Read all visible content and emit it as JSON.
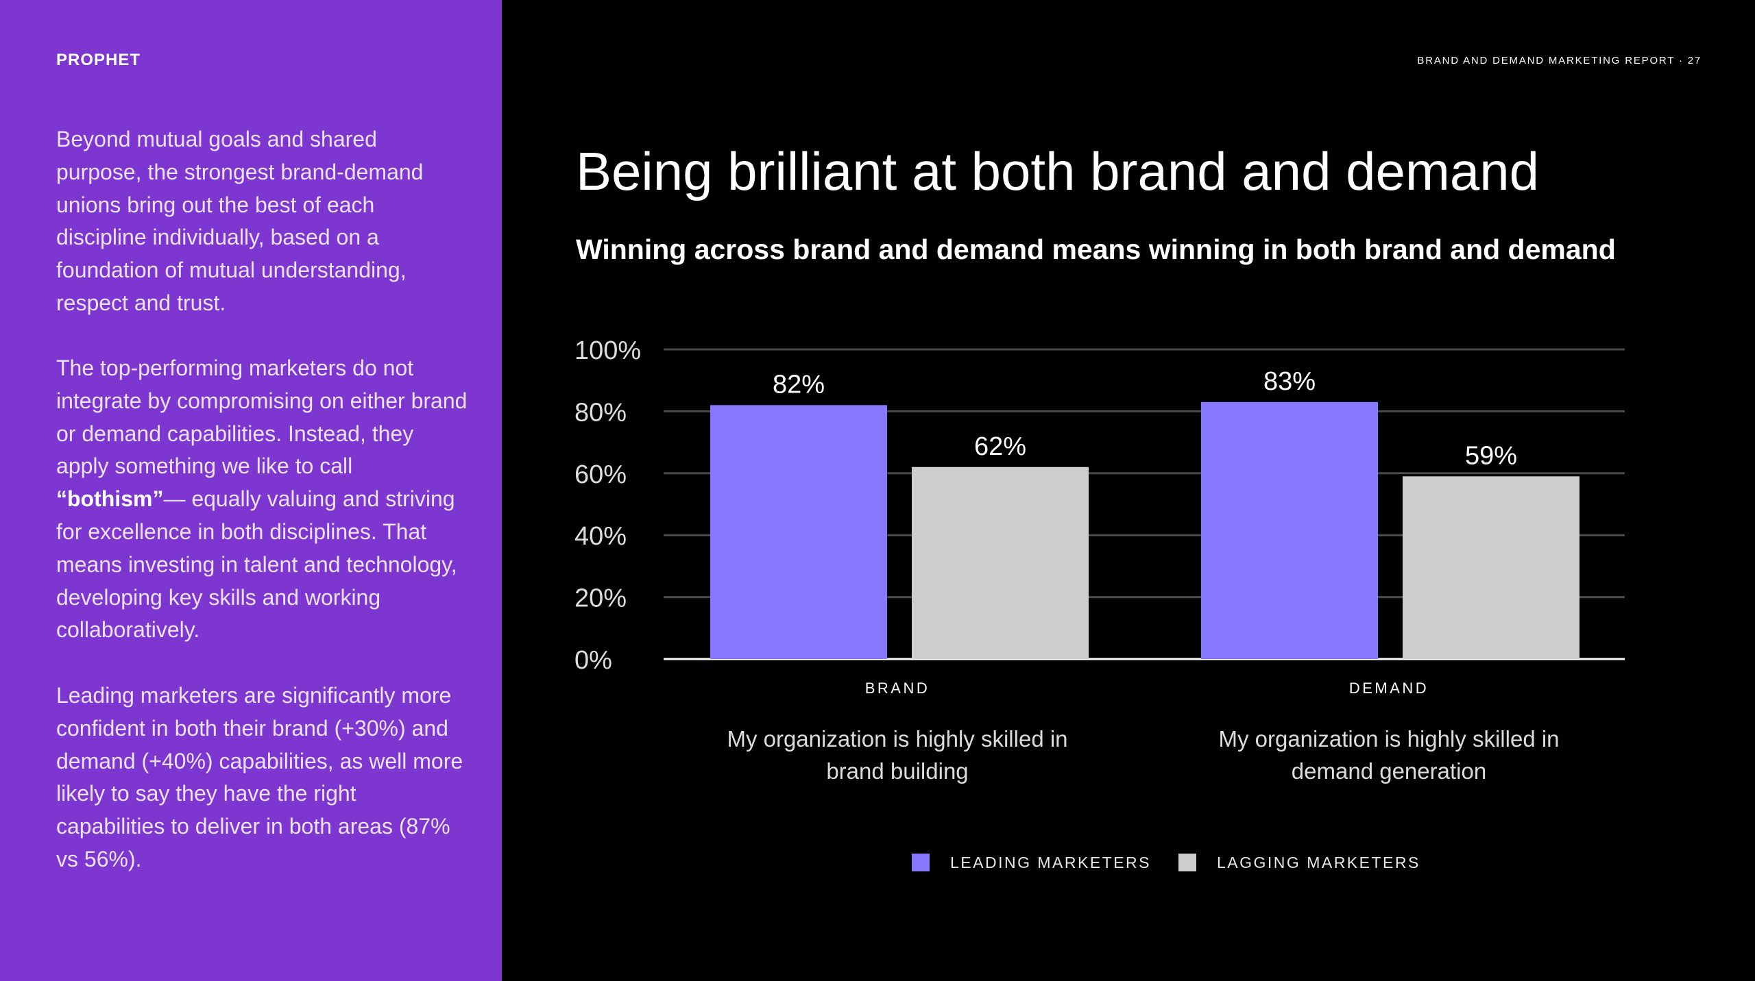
{
  "brand": {
    "logo": "PROPHET"
  },
  "header": {
    "report_title": "BRAND AND DEMAND MARKETING REPORT · 27"
  },
  "sidebar": {
    "para1": "Beyond mutual goals and shared purpose, the strongest brand-demand unions bring out the best of each discipline individually, based on a foundation of mutual understanding, respect and trust.",
    "para2_before": "The top-performing marketers do not integrate by compromising on either brand or demand capabilities. Instead, they apply something we like to call ",
    "para2_bold": "“bothism”",
    "para2_after": "— equally valuing and striving for excellence in both disciplines. That means investing in talent and technology, developing key skills and working collaboratively.",
    "para3": "Leading marketers are significantly more confident in both their brand (+30%) and demand (+40%) capabilities, as well more likely to say they have the right capabilities to deliver in both areas (87% vs 56%)."
  },
  "main": {
    "title": "Being brilliant at both brand and demand",
    "subtitle": "Winning across brand and demand means winning in both brand and demand"
  },
  "colors": {
    "sidebar_bg": "#7d36d0",
    "leading": "#8878ff",
    "lagging": "#cecece",
    "gridline": "#4a4a4a",
    "axis": "#ffffff"
  },
  "chart_data": {
    "type": "bar",
    "categories": [
      "BRAND",
      "DEMAND"
    ],
    "category_descriptions": [
      "My organization is highly skilled in brand building",
      "My organization is highly skilled in demand generation"
    ],
    "series": [
      {
        "name": "LEADING MARKETERS",
        "values": [
          82,
          83
        ],
        "labels": [
          "82%",
          "83%"
        ],
        "color": "#8878ff"
      },
      {
        "name": "LAGGING MARKETERS",
        "values": [
          62,
          59
        ],
        "labels": [
          "62%",
          "59%"
        ],
        "color": "#cecece"
      }
    ],
    "y_ticks": [
      "0%",
      "20%",
      "40%",
      "60%",
      "80%",
      "100%"
    ],
    "ylim": [
      0,
      100
    ],
    "grid": true,
    "legend_position": "bottom"
  }
}
